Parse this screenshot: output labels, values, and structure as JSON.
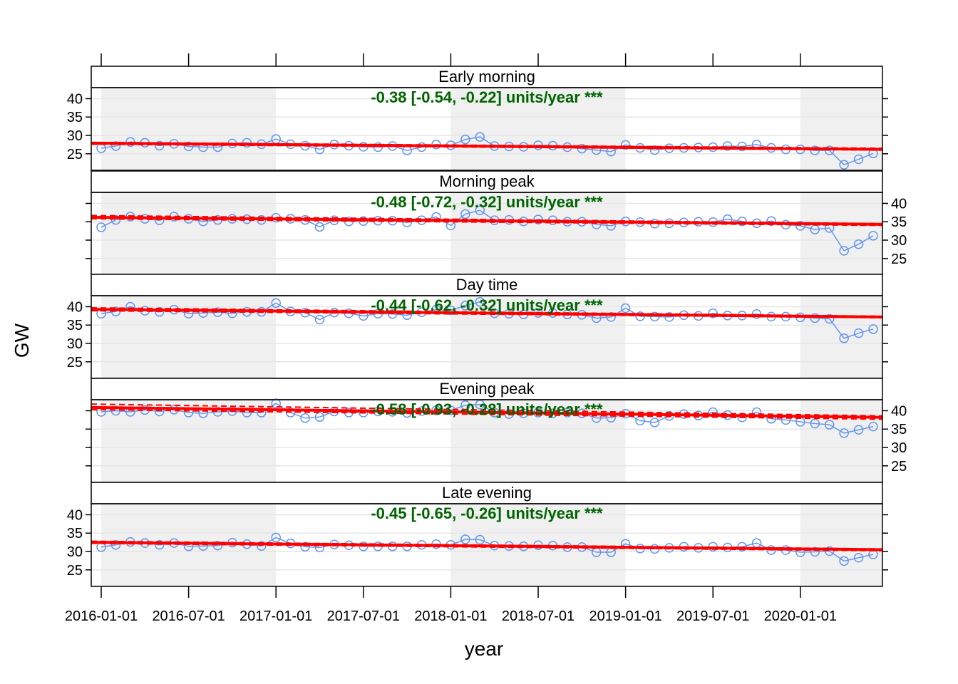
{
  "chart_data": {
    "type": "line",
    "ylabel": "GW",
    "xlabel": "year",
    "x_ticks": [
      "2016-01-01",
      "2016-07-01",
      "2017-01-01",
      "2017-07-01",
      "2018-01-01",
      "2018-07-01",
      "2019-01-01",
      "2019-07-01",
      "2020-01-01"
    ],
    "y_ticks": [
      25,
      30,
      35,
      40
    ],
    "ylim": [
      20.5,
      43.0
    ],
    "grid": true,
    "colors": {
      "series": "#6495ED",
      "trend": "#FF0000",
      "label": "#006400",
      "shade": "#F0F0F0"
    },
    "x_start": "2016-01",
    "x_end": "2020-06",
    "panels": [
      {
        "name": "Early morning",
        "trend_text": "-0.38 [-0.54, -0.22] units/year ***",
        "trend": {
          "start": 27.9,
          "end": 26.2,
          "upper": [
            28.1,
            26.5
          ],
          "lower": [
            27.6,
            26.0
          ]
        },
        "values": [
          26.5,
          27.1,
          28.2,
          28.0,
          27.2,
          27.7,
          27.0,
          26.8,
          26.8,
          27.8,
          28.0,
          27.6,
          29.0,
          27.6,
          27.2,
          26.2,
          27.5,
          27.2,
          26.9,
          26.8,
          27.1,
          25.9,
          26.8,
          27.5,
          27.3,
          28.9,
          29.6,
          27.1,
          27.0,
          26.9,
          27.3,
          27.2,
          26.8,
          26.4,
          26.0,
          25.6,
          27.4,
          26.6,
          26.0,
          26.5,
          26.6,
          26.7,
          26.8,
          27.1,
          27.0,
          27.5,
          26.6,
          26.2,
          26.2,
          25.9,
          25.9,
          22.0,
          23.5,
          25.1
        ]
      },
      {
        "name": "Morning peak",
        "trend_text": "-0.48 [-0.72, -0.32] units/year ***",
        "trend": {
          "start": 36.2,
          "end": 34.3,
          "upper": [
            36.7,
            34.5
          ],
          "lower": [
            35.8,
            34.0
          ]
        },
        "values": [
          33.5,
          35.5,
          36.4,
          35.8,
          35.4,
          36.4,
          35.8,
          35.1,
          35.5,
          35.8,
          35.7,
          35.5,
          36.1,
          35.8,
          35.5,
          33.6,
          35.4,
          35.1,
          35.2,
          35.3,
          35.3,
          34.8,
          35.4,
          36.3,
          34.0,
          37.1,
          38.1,
          35.4,
          35.5,
          35.1,
          35.6,
          35.4,
          35.0,
          35.0,
          34.3,
          33.9,
          35.1,
          34.9,
          34.5,
          34.6,
          34.8,
          35.0,
          34.9,
          35.7,
          35.1,
          34.6,
          35.2,
          34.2,
          33.9,
          32.9,
          33.3,
          27.1,
          28.9,
          31.2
        ]
      },
      {
        "name": "Day time",
        "trend_text": "-0.44 [-0.62, -0.32] units/year ***",
        "trend": {
          "start": 39.3,
          "end": 37.2,
          "upper": [
            39.7,
            37.4
          ],
          "lower": [
            38.9,
            37.0
          ]
        },
        "values": [
          38.1,
          38.7,
          40.0,
          38.9,
          38.6,
          39.2,
          38.1,
          38.3,
          38.5,
          38.2,
          38.6,
          38.6,
          41.0,
          38.7,
          38.4,
          36.5,
          38.4,
          38.2,
          37.5,
          38.1,
          38.0,
          37.7,
          38.5,
          39.2,
          39.0,
          40.3,
          41.3,
          38.2,
          38.1,
          37.9,
          38.3,
          38.3,
          37.9,
          37.8,
          36.9,
          37.2,
          39.6,
          37.4,
          37.3,
          37.2,
          37.7,
          37.5,
          38.2,
          37.6,
          37.6,
          38.0,
          37.3,
          37.3,
          37.1,
          36.9,
          36.7,
          31.4,
          32.8,
          33.9
        ]
      },
      {
        "name": "Evening peak",
        "trend_text": "-0.58 [-0.93, -0.28] units/year ***",
        "trend": {
          "start": 40.9,
          "end": 38.2,
          "upper": [
            41.8,
            38.6
          ],
          "lower": [
            40.3,
            37.7
          ]
        },
        "values": [
          39.7,
          40.0,
          39.7,
          40.2,
          39.8,
          40.3,
          39.5,
          39.3,
          39.7,
          39.9,
          39.5,
          39.5,
          42.0,
          39.5,
          38.0,
          38.3,
          39.8,
          39.5,
          39.5,
          39.8,
          39.7,
          39.4,
          39.9,
          40.1,
          40.1,
          41.5,
          41.7,
          39.5,
          39.1,
          39.3,
          39.5,
          39.3,
          39.5,
          39.3,
          38.0,
          38.1,
          39.2,
          37.3,
          36.8,
          38.6,
          39.1,
          38.7,
          39.6,
          38.8,
          38.2,
          39.6,
          37.8,
          37.5,
          37.0,
          36.5,
          36.2,
          33.9,
          34.8,
          35.7
        ]
      },
      {
        "name": "Late evening",
        "trend_text": "-0.45 [-0.65, -0.26] units/year ***",
        "trend": {
          "start": 32.5,
          "end": 30.5,
          "upper": [
            32.8,
            30.7
          ],
          "lower": [
            32.2,
            30.2
          ]
        },
        "values": [
          31.2,
          31.8,
          32.6,
          32.3,
          31.8,
          32.3,
          31.4,
          31.5,
          31.6,
          32.4,
          32.0,
          31.5,
          33.8,
          32.2,
          31.3,
          31.1,
          31.9,
          31.7,
          31.4,
          31.4,
          31.4,
          31.4,
          31.8,
          32.0,
          31.8,
          33.3,
          33.2,
          31.6,
          31.5,
          31.4,
          31.7,
          31.6,
          31.2,
          31.2,
          29.8,
          29.8,
          32.1,
          30.8,
          30.7,
          31.0,
          31.3,
          31.0,
          31.3,
          31.1,
          31.3,
          32.3,
          30.4,
          30.4,
          29.8,
          29.9,
          30.1,
          27.4,
          28.3,
          29.2
        ]
      }
    ]
  }
}
